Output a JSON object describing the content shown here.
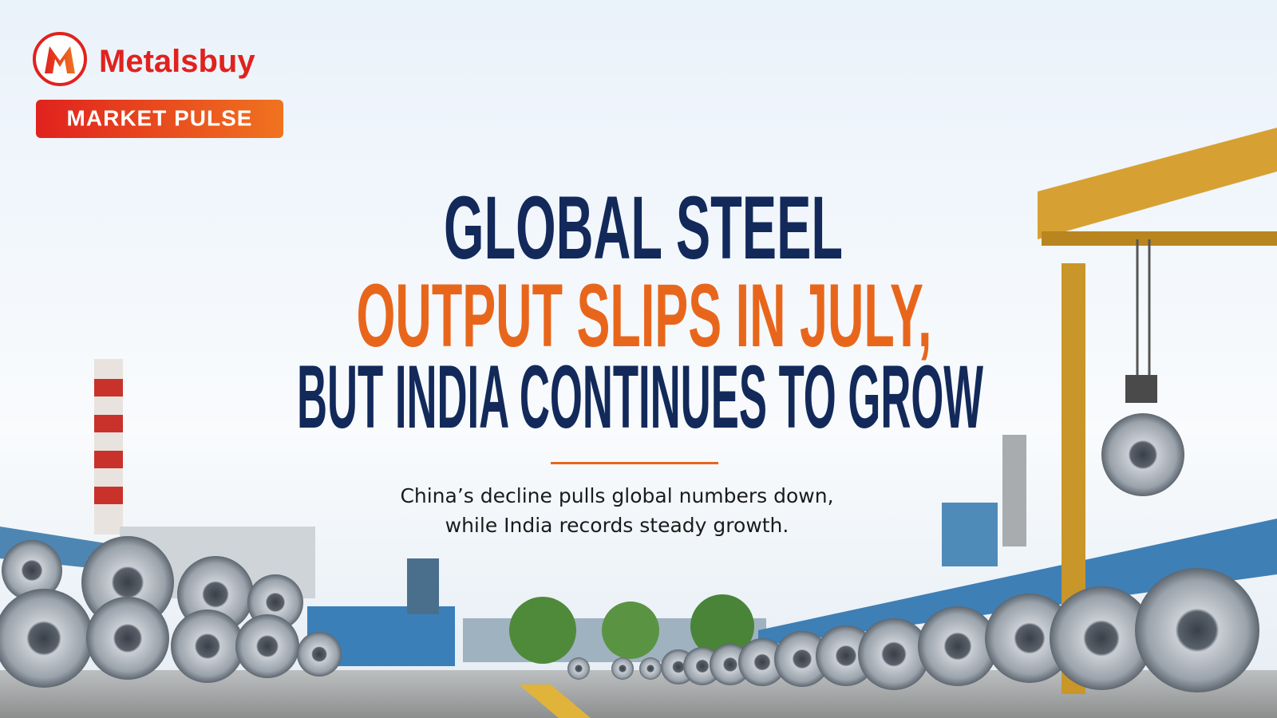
{
  "brand": {
    "name": "Metalsbuy",
    "badge": "MARKET PULSE"
  },
  "headline": {
    "line1": "GLOBAL STEEL",
    "line2": "OUTPUT SLIPS IN JULY,",
    "line3": "BUT INDIA CONTINUES TO GROW"
  },
  "subtitle": {
    "line1": "China’s decline pulls global numbers down,",
    "line2": "while India records steady growth."
  }
}
